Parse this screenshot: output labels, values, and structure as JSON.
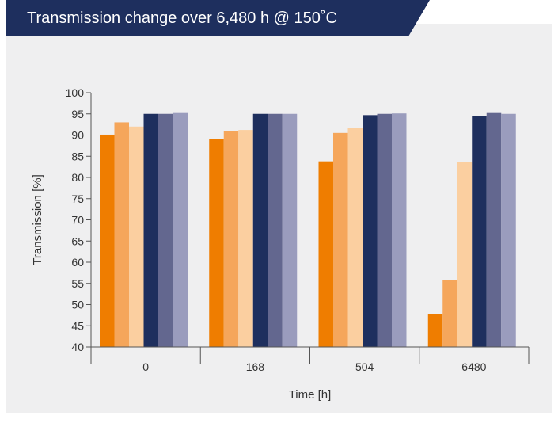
{
  "title": "Transmission change over 6,480 h @ 150˚C",
  "colors": {
    "title_band": "#1e2f5e",
    "panel": "#efeff0",
    "axis": "#555555"
  },
  "chart_data": {
    "type": "bar",
    "xlabel": "Time [h]",
    "ylabel": "Transmission [%]",
    "ylim": [
      40,
      100
    ],
    "yticks": [
      40,
      45,
      50,
      55,
      60,
      65,
      70,
      75,
      80,
      85,
      90,
      95,
      100
    ],
    "categories": [
      "0",
      "168",
      "504",
      "6480"
    ],
    "grid": false,
    "legend": "none",
    "series": [
      {
        "color": "#ef7d00",
        "values": [
          90.1,
          89.0,
          83.8,
          47.8
        ]
      },
      {
        "color": "#f5a65b",
        "values": [
          93.0,
          91.0,
          90.5,
          55.8
        ]
      },
      {
        "color": "#fbcfa0",
        "values": [
          92.0,
          91.2,
          91.7,
          83.6
        ]
      },
      {
        "color": "#1e2f5e",
        "values": [
          95.0,
          95.0,
          94.7,
          94.4
        ]
      },
      {
        "color": "#63678f",
        "values": [
          95.0,
          95.0,
          95.0,
          95.2
        ]
      },
      {
        "color": "#9a9cbd",
        "values": [
          95.2,
          95.0,
          95.1,
          95.0
        ]
      }
    ]
  }
}
